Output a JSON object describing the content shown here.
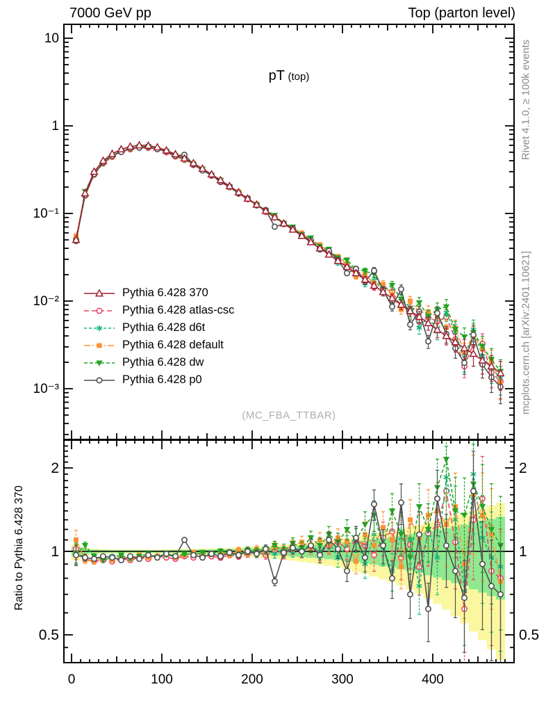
{
  "header": {
    "left_title": "7000 GeV pp",
    "right_title": "Top (parton level)"
  },
  "plot_title": {
    "main": "pT",
    "sub": "(top)"
  },
  "watermark": "(MC_FBA_TTBAR)",
  "side_notes": {
    "top": "Rivet 4.1.0, ≥ 100k events",
    "bottom": "mcplots.cern.ch [arXiv:2401.10621]"
  },
  "ratio_axis_label": "Ratio to Pythia 6.428 370",
  "chart_data": {
    "type": "line",
    "title": "pT (top)",
    "xlabel": "",
    "ylabel": "",
    "grid": false,
    "legend_position": "middle-left",
    "xlim": [
      -8,
      490
    ],
    "main_ylim_log": [
      0.00026,
      14.4
    ],
    "ratio_ylim_log": [
      0.4,
      2.5
    ],
    "x_tick_labels": [
      "0",
      "100",
      "200",
      "300",
      "400"
    ],
    "x_tick_values": [
      0,
      100,
      200,
      300,
      400
    ],
    "main_y_tick_labels": [
      "10",
      "1",
      "10⁻¹",
      "10⁻²",
      "10⁻³"
    ],
    "main_y_tick_values": [
      10,
      1,
      0.1,
      0.01,
      0.001
    ],
    "ratio_y_tick_labels": [
      "2",
      "1",
      "0.5"
    ],
    "ratio_y_tick_values": [
      2,
      1,
      0.5
    ],
    "x": [
      5,
      15,
      25,
      35,
      45,
      55,
      65,
      75,
      85,
      95,
      105,
      115,
      125,
      135,
      145,
      155,
      165,
      175,
      185,
      195,
      205,
      215,
      225,
      235,
      245,
      255,
      265,
      275,
      285,
      295,
      305,
      315,
      325,
      335,
      345,
      355,
      365,
      375,
      385,
      395,
      405,
      415,
      425,
      435,
      445,
      455,
      465,
      475
    ],
    "reference": {
      "name": "Pythia 6.428 370",
      "color": "#9e1f2e",
      "marker": "triangle-up-open",
      "dash": "",
      "values": [
        0.05,
        0.17,
        0.3,
        0.4,
        0.48,
        0.54,
        0.58,
        0.6,
        0.595,
        0.57,
        0.525,
        0.475,
        0.425,
        0.375,
        0.325,
        0.28,
        0.24,
        0.205,
        0.175,
        0.148,
        0.126,
        0.107,
        0.0905,
        0.077,
        0.0655,
        0.0555,
        0.047,
        0.04,
        0.034,
        0.0288,
        0.0245,
        0.0208,
        0.0176,
        0.015,
        0.0127,
        0.0108,
        0.0091,
        0.0077,
        0.0066,
        0.0056,
        0.0047,
        0.004,
        0.0034,
        0.0029,
        0.0025,
        0.0021,
        0.0018,
        0.0015
      ]
    },
    "series": [
      {
        "name": "Pythia 6.428 atlas-csc",
        "color": "#ef4565",
        "marker": "circle-open",
        "dash": "7,4",
        "ratio": [
          1.02,
          0.94,
          0.92,
          0.93,
          0.92,
          0.94,
          0.93,
          0.95,
          0.94,
          0.96,
          0.95,
          0.94,
          0.96,
          0.95,
          0.97,
          0.96,
          0.95,
          0.97,
          0.96,
          0.98,
          1.0,
          0.97,
          1.01,
          0.98,
          1.02,
          1.0,
          1.03,
          0.99,
          1.05,
          1.08,
          1.02,
          1.1,
          1.05,
          0.97,
          1.12,
          1.18,
          0.95,
          1.06,
          0.88,
          1.16,
          1.25,
          1.65,
          1.08,
          0.62,
          1.3,
          1.55,
          0.85,
          0.8
        ]
      },
      {
        "name": "Pythia 6.428 d6t",
        "color": "#0eb57c",
        "marker": "asterisk",
        "dash": "4,3",
        "ratio": [
          0.99,
          0.95,
          0.94,
          0.95,
          0.96,
          0.94,
          0.96,
          0.95,
          0.97,
          0.96,
          0.98,
          0.96,
          0.97,
          0.98,
          0.96,
          0.98,
          0.99,
          0.97,
          0.98,
          1.0,
          0.99,
          1.01,
          0.98,
          1.02,
          1.0,
          1.03,
          1.05,
          1.0,
          1.08,
          0.95,
          1.05,
          1.12,
          0.9,
          1.15,
          1.03,
          0.85,
          1.18,
          1.1,
          0.75,
          1.2,
          0.95,
          1.85,
          1.3,
          0.72,
          1.9,
          1.12,
          0.95,
          0.88
        ]
      },
      {
        "name": "Pythia 6.428 default",
        "color": "#ff9233",
        "marker": "square-filled",
        "dash": "9,3,2,3",
        "ratio": [
          1.1,
          0.93,
          0.92,
          0.95,
          0.93,
          0.96,
          0.94,
          0.97,
          0.95,
          0.96,
          0.98,
          0.95,
          0.97,
          0.99,
          0.96,
          0.98,
          1.0,
          0.97,
          1.01,
          0.99,
          1.02,
          1.0,
          1.04,
          1.01,
          1.05,
          1.08,
          1.03,
          1.1,
          1.06,
          1.12,
          1.08,
          0.92,
          1.15,
          1.05,
          1.22,
          1.1,
          0.88,
          1.3,
          1.12,
          1.35,
          1.4,
          1.25,
          1.45,
          0.9,
          1.6,
          1.35,
          1.15,
          0.78
        ]
      },
      {
        "name": "Pythia 6.428 dw",
        "color": "#22a322",
        "marker": "triangle-down-filled",
        "dash": "5,3",
        "ratio": [
          0.98,
          1.05,
          0.96,
          0.93,
          0.95,
          0.97,
          0.94,
          0.96,
          0.98,
          0.95,
          0.97,
          0.96,
          0.98,
          0.97,
          0.99,
          0.98,
          1.0,
          0.99,
          0.97,
          1.01,
          1.0,
          1.02,
          1.05,
          1.0,
          1.07,
          1.03,
          1.12,
          1.05,
          1.15,
          1.08,
          1.2,
          1.1,
          1.25,
          1.35,
          1.05,
          1.4,
          1.15,
          0.95,
          1.45,
          1.2,
          1.7,
          2.15,
          1.4,
          1.35,
          1.75,
          1.45,
          1.2,
          1.05
        ]
      },
      {
        "name": "Pythia 6.428 p0",
        "color": "#4f4f4f",
        "marker": "circle-open",
        "dash": "",
        "ratio": [
          0.97,
          0.95,
          0.94,
          0.96,
          0.95,
          0.93,
          0.96,
          0.94,
          0.97,
          0.95,
          0.98,
          0.96,
          1.1,
          0.97,
          0.95,
          0.98,
          0.96,
          0.99,
          0.97,
          1.0,
          0.98,
          1.02,
          0.78,
          0.99,
          1.03,
          1.0,
          1.05,
          0.97,
          1.1,
          1.02,
          0.85,
          1.12,
          0.95,
          1.48,
          1.05,
          0.8,
          1.5,
          0.7,
          1.15,
          0.62,
          1.55,
          1.05,
          0.85,
          0.68,
          1.65,
          0.9,
          0.75,
          0.7
        ]
      }
    ],
    "rel_err": [
      0.06,
      0.02,
      0.015,
      0.012,
      0.01,
      0.01,
      0.01,
      0.01,
      0.01,
      0.01,
      0.01,
      0.011,
      0.012,
      0.013,
      0.014,
      0.015,
      0.016,
      0.017,
      0.018,
      0.02,
      0.022,
      0.024,
      0.026,
      0.03,
      0.033,
      0.036,
      0.04,
      0.045,
      0.05,
      0.055,
      0.06,
      0.07,
      0.08,
      0.09,
      0.1,
      0.11,
      0.12,
      0.13,
      0.15,
      0.17,
      0.19,
      0.21,
      0.23,
      0.26,
      0.28,
      0.3,
      0.33,
      0.36
    ],
    "ratio_err_scale": 1.4,
    "bands": {
      "green_color": "#90e890",
      "yellow_color": "#fbf7a0",
      "green_half": [
        0.04,
        0.02,
        0.015,
        0.012,
        0.01,
        0.01,
        0.01,
        0.01,
        0.01,
        0.01,
        0.011,
        0.012,
        0.013,
        0.014,
        0.015,
        0.016,
        0.018,
        0.02,
        0.022,
        0.024,
        0.027,
        0.03,
        0.033,
        0.037,
        0.041,
        0.046,
        0.051,
        0.057,
        0.063,
        0.07,
        0.078,
        0.086,
        0.095,
        0.105,
        0.115,
        0.126,
        0.138,
        0.151,
        0.165,
        0.18,
        0.196,
        0.213,
        0.231,
        0.25,
        0.27,
        0.29,
        0.31,
        0.33
      ],
      "yellow_dn": [
        0.072,
        0.036,
        0.027,
        0.022,
        0.018,
        0.018,
        0.018,
        0.018,
        0.018,
        0.018,
        0.02,
        0.022,
        0.023,
        0.025,
        0.027,
        0.029,
        0.032,
        0.036,
        0.04,
        0.043,
        0.049,
        0.054,
        0.059,
        0.067,
        0.074,
        0.083,
        0.092,
        0.103,
        0.113,
        0.126,
        0.14,
        0.155,
        0.171,
        0.189,
        0.207,
        0.227,
        0.248,
        0.272,
        0.297,
        0.324,
        0.353,
        0.383,
        0.416,
        0.45,
        0.486,
        0.522,
        0.558,
        0.594
      ],
      "yellow_up": [
        0.06,
        0.03,
        0.023,
        0.018,
        0.015,
        0.015,
        0.015,
        0.015,
        0.015,
        0.015,
        0.017,
        0.018,
        0.02,
        0.021,
        0.023,
        0.024,
        0.027,
        0.03,
        0.033,
        0.036,
        0.041,
        0.045,
        0.05,
        0.056,
        0.062,
        0.069,
        0.077,
        0.086,
        0.095,
        0.105,
        0.117,
        0.129,
        0.143,
        0.158,
        0.173,
        0.189,
        0.207,
        0.227,
        0.248,
        0.27,
        0.294,
        0.32,
        0.347,
        0.375,
        0.405,
        0.435,
        0.465,
        0.495
      ]
    }
  }
}
